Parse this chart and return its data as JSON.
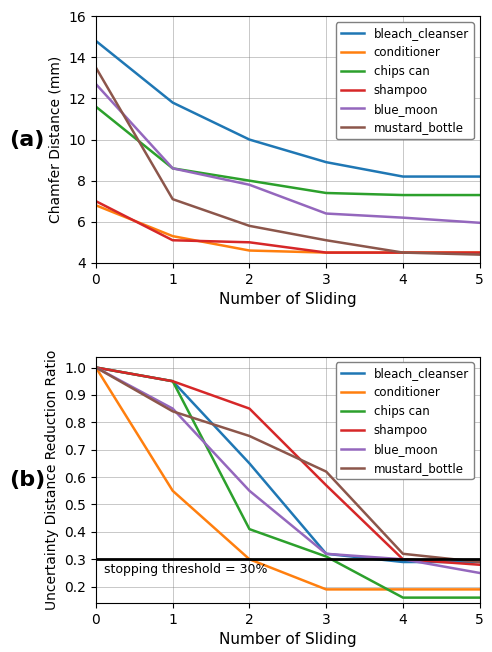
{
  "x": [
    0,
    1,
    2,
    3,
    4,
    5
  ],
  "chamfer": {
    "bleach_cleanser": [
      14.8,
      11.8,
      10.0,
      8.9,
      8.2,
      8.2
    ],
    "conditioner": [
      6.8,
      5.3,
      4.6,
      4.5,
      4.5,
      4.5
    ],
    "chips can": [
      11.6,
      8.6,
      8.0,
      7.4,
      7.3,
      7.3
    ],
    "shampoo": [
      7.0,
      5.1,
      5.0,
      4.5,
      4.5,
      4.5
    ],
    "blue_moon": [
      12.7,
      8.6,
      7.8,
      6.4,
      6.2,
      5.95
    ],
    "mustard_bottle": [
      13.5,
      7.1,
      5.8,
      5.1,
      4.5,
      4.4
    ]
  },
  "uncertainty": {
    "bleach_cleanser": [
      1.0,
      0.95,
      0.65,
      0.32,
      0.29,
      0.29
    ],
    "conditioner": [
      1.0,
      0.55,
      0.3,
      0.19,
      0.19,
      0.19
    ],
    "chips can": [
      1.0,
      0.95,
      0.41,
      0.31,
      0.16,
      0.16
    ],
    "shampoo": [
      1.0,
      0.95,
      0.85,
      0.57,
      0.3,
      0.28
    ],
    "blue_moon": [
      1.0,
      0.85,
      0.55,
      0.32,
      0.3,
      0.25
    ],
    "mustard_bottle": [
      1.0,
      0.84,
      0.75,
      0.62,
      0.32,
      0.29
    ]
  },
  "colors": {
    "bleach_cleanser": "#1f77b4",
    "conditioner": "#ff7f0e",
    "chips can": "#2ca02c",
    "shampoo": "#d62728",
    "blue_moon": "#9467bd",
    "mustard_bottle": "#8c564b"
  },
  "chamfer_ylim": [
    4,
    16
  ],
  "chamfer_yticks": [
    4,
    6,
    8,
    10,
    12,
    14,
    16
  ],
  "uncertainty_ylim": [
    0.14,
    1.04
  ],
  "uncertainty_yticks": [
    0.2,
    0.3,
    0.4,
    0.5,
    0.6,
    0.7,
    0.8,
    0.9,
    1.0
  ],
  "threshold": 0.3,
  "threshold_label": "stopping threshold = 30%",
  "xlabel": "Number of Sliding",
  "ylabel_a": "Chamfer Distance (mm)",
  "ylabel_b": "Uncertainty Distance Reduction Ratio",
  "label_a": "(a)",
  "label_b": "(b)"
}
